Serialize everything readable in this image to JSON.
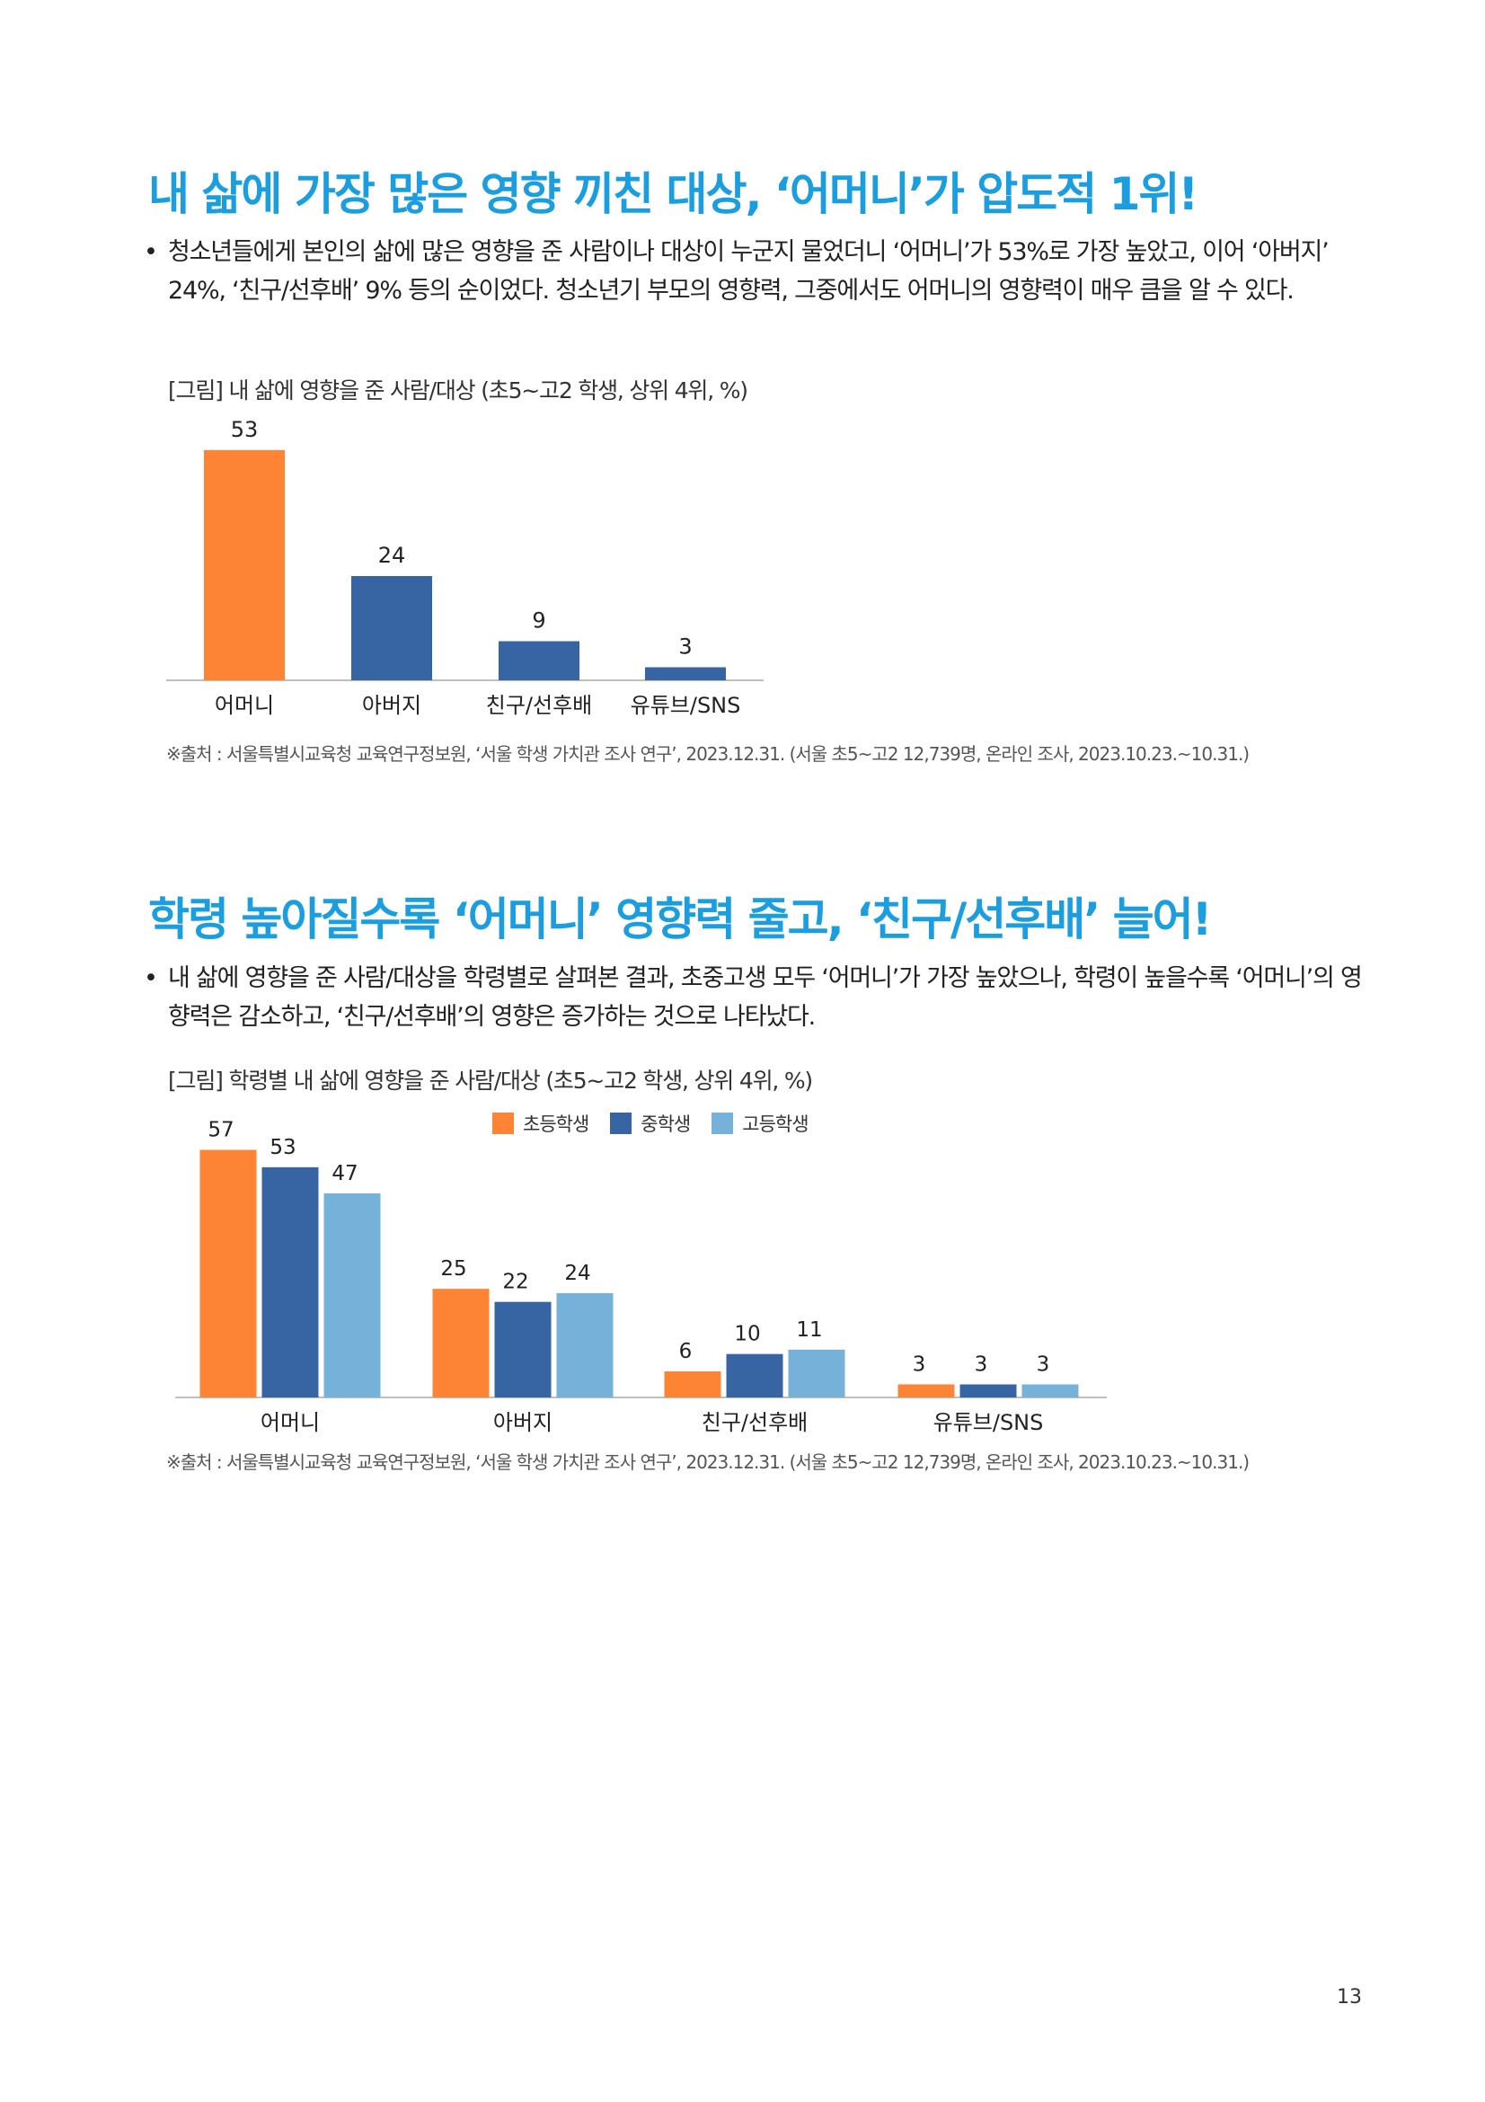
{
  "section1": {
    "heading": "내 삶에 가장 많은 영향 끼친 대상, ‘어머니’가 압도적 1위!",
    "bullet": "청소년들에게 본인의 삶에 많은 영향을 준 사람이나 대상이 누군지 물었더니 ‘어머니’가 53%로 가장 높았고, 이어 ‘아버지’ 24%, ‘친구/선후배’ 9% 등의 순이었다. 청소년기 부모의 영향력, 그중에서도 어머니의 영향력이 매우 큼을 알 수 있다.",
    "caption": "[그림] 내 삶에 영향을 준 사람/대상 (초5~고2 학생, 상위 4위, %)",
    "source": "※출처 : 서울특별시교육청 교육연구정보원, ‘서울 학생 가치관 조사 연구’, 2023.12.31. (서울 초5~고2 12,739명, 온라인 조사, 2023.10.23.~10.31.)"
  },
  "section2": {
    "heading": "학령 높아질수록 ‘어머니’ 영향력 줄고, ‘친구/선후배’ 늘어!",
    "bullet": "내 삶에 영향을 준 사람/대상을 학령별로 살펴본 결과, 초중고생 모두 ‘어머니’가 가장 높았으나, 학령이 높을수록 ‘어머니’의 영향력은 감소하고, ‘친구/선후배’의 영향은 증가하는 것으로 나타났다.",
    "caption": "[그림] 학령별 내 삶에 영향을 준 사람/대상 (초5~고2 학생, 상위 4위, %)",
    "source": "※출처 : 서울특별시교육청 교육연구정보원, ‘서울 학생 가치관 조사 연구’, 2023.12.31. (서울 초5~고2 12,739명, 온라인 조사, 2023.10.23.~10.31.)"
  },
  "page_number": "13",
  "colors": {
    "heading": "#1a9ee0",
    "orange": "#fd8435",
    "navy": "#3765a3",
    "lightblue": "#76b1d9",
    "axis": "#bfbfbf"
  },
  "chart_data": [
    {
      "type": "bar",
      "categories": [
        "어머니",
        "아버지",
        "친구/선후배",
        "유튜브/SNS"
      ],
      "values": [
        53,
        24,
        9,
        3
      ],
      "ylim": [
        0,
        60
      ],
      "grid": false
    },
    {
      "type": "bar",
      "categories": [
        "어머니",
        "아버지",
        "친구/선후배",
        "유튜브/SNS"
      ],
      "series": [
        {
          "name": "초등학생",
          "values": [
            57,
            25,
            6,
            3
          ]
        },
        {
          "name": "중학생",
          "values": [
            53,
            22,
            10,
            3
          ]
        },
        {
          "name": "고등학생",
          "values": [
            47,
            24,
            11,
            3
          ]
        }
      ],
      "ylim": [
        0,
        60
      ],
      "legend": "top-center",
      "grid": false
    }
  ]
}
